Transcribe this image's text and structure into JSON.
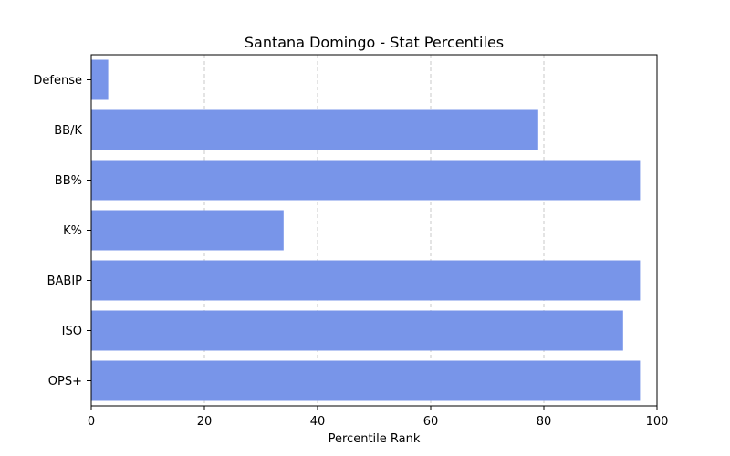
{
  "chart_data": {
    "type": "bar",
    "orientation": "horizontal",
    "title": "Santana Domingo - Stat Percentiles",
    "xlabel": "Percentile Rank",
    "ylabel": "",
    "xlim": [
      0,
      100
    ],
    "x_ticks": [
      0,
      20,
      40,
      60,
      80,
      100
    ],
    "grid": "x-dashed",
    "categories": [
      "Defense",
      "BB/K",
      "BB%",
      "K%",
      "BABIP",
      "ISO",
      "OPS+"
    ],
    "values": [
      3,
      79,
      97,
      34,
      97,
      94,
      97
    ],
    "bar_color": "#7895e9",
    "grid_color": "#c8c8c8",
    "axis_color": "#000000"
  }
}
